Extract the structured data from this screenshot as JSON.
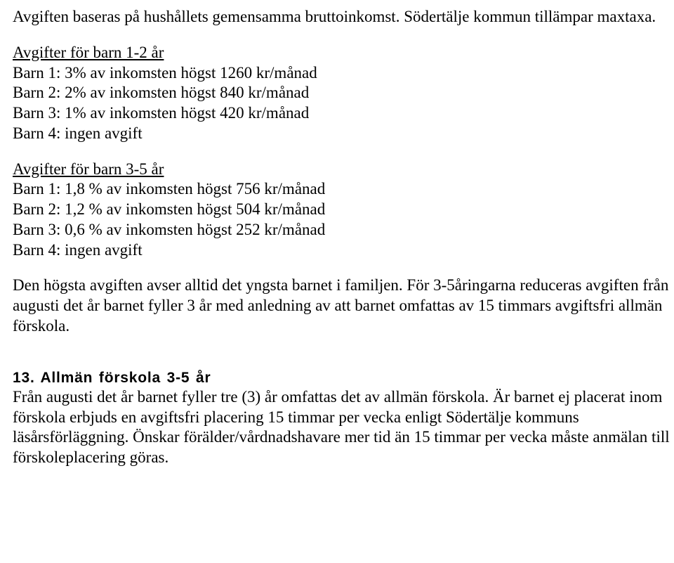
{
  "intro": "Avgiften baseras på hushållets gemensamma bruttoinkomst. Södertälje kommun tillämpar maxtaxa.",
  "group12": {
    "title": "Avgifter för barn 1-2 år",
    "lines": [
      "Barn 1: 3% av inkomsten högst 1260 kr/månad",
      "Barn 2: 2% av inkomsten högst 840 kr/månad",
      "Barn 3: 1% av inkomsten högst 420 kr/månad",
      "Barn 4: ingen avgift"
    ]
  },
  "group35": {
    "title": "Avgifter för barn 3-5 år",
    "lines": [
      "Barn 1: 1,8 % av inkomsten högst 756 kr/månad",
      "Barn 2: 1,2 % av inkomsten högst 504 kr/månad",
      "Barn 3: 0,6 % av inkomsten högst 252 kr/månad",
      "Barn 4: ingen avgift"
    ]
  },
  "para_youngest": "Den högsta avgiften avser alltid det yngsta barnet i familjen. För 3-5åringarna reduceras avgiften från augusti det år barnet fyller 3 år med anledning av att barnet omfattas av 15 timmars avgiftsfri allmän förskola.",
  "section13": {
    "heading": "13. Allmän förskola 3-5 år",
    "body": "Från augusti det år barnet fyller tre (3) år omfattas det av allmän förskola. Är barnet ej placerat inom förskola erbjuds en avgiftsfri placering 15 timmar per vecka enligt Södertälje kommuns läsårsförläggning. Önskar förälder/vårdnadshavare mer tid än 15 timmar per vecka måste anmälan till förskoleplacering göras."
  }
}
